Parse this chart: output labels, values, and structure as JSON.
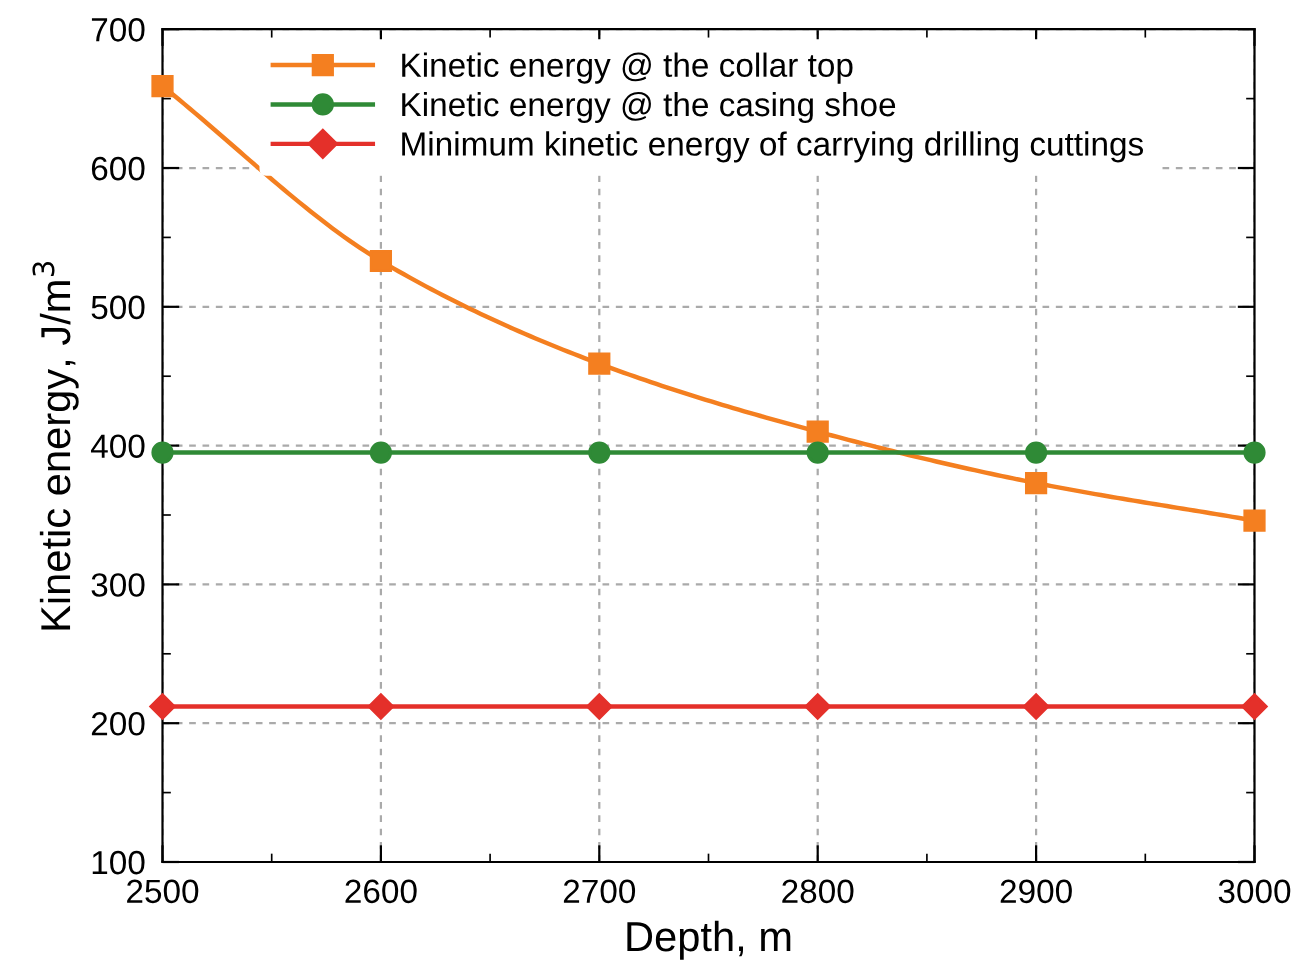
{
  "chart_data": {
    "type": "line",
    "xlabel": "Depth, m",
    "ylabel": "Kinetic energy, J/m$^{3}$",
    "x": [
      2500,
      2600,
      2700,
      2800,
      2900,
      3000
    ],
    "series": [
      {
        "name": "Kinetic energy @ the collar top",
        "color": "#f47f20",
        "marker": "square",
        "values": [
          659,
          533,
          459,
          410,
          373,
          346
        ]
      },
      {
        "name": "Kinetic energy @ the casing shoe",
        "color": "#2f8a36",
        "marker": "circle",
        "values": [
          395,
          395,
          395,
          395,
          395,
          395
        ]
      },
      {
        "name": "Minimum kinetic energy of carrying drilling cuttings",
        "color": "#e4302a",
        "marker": "diamond",
        "values": [
          212,
          212,
          212,
          212,
          212,
          212
        ]
      }
    ],
    "xlim": [
      2500,
      3000
    ],
    "ylim": [
      100,
      700
    ],
    "xticks": [
      2500,
      {
        "value": 2550,
        "label": null
      },
      2600,
      {
        "value": 2650,
        "label": null
      },
      2700,
      {
        "value": 2750,
        "label": null
      },
      2800,
      {
        "value": 2850,
        "label": null
      },
      2900,
      {
        "value": 2950,
        "label": null
      },
      3000
    ],
    "yticks": [
      100,
      {
        "value": 150,
        "label": null
      },
      200,
      {
        "value": 250,
        "label": null
      },
      300,
      {
        "value": 350,
        "label": null
      },
      400,
      {
        "value": 450,
        "label": null
      },
      500,
      {
        "value": 550,
        "label": null
      },
      600,
      {
        "value": 650,
        "label": null
      },
      700
    ],
    "grid": true,
    "legend": "top",
    "line_style": "solid"
  }
}
